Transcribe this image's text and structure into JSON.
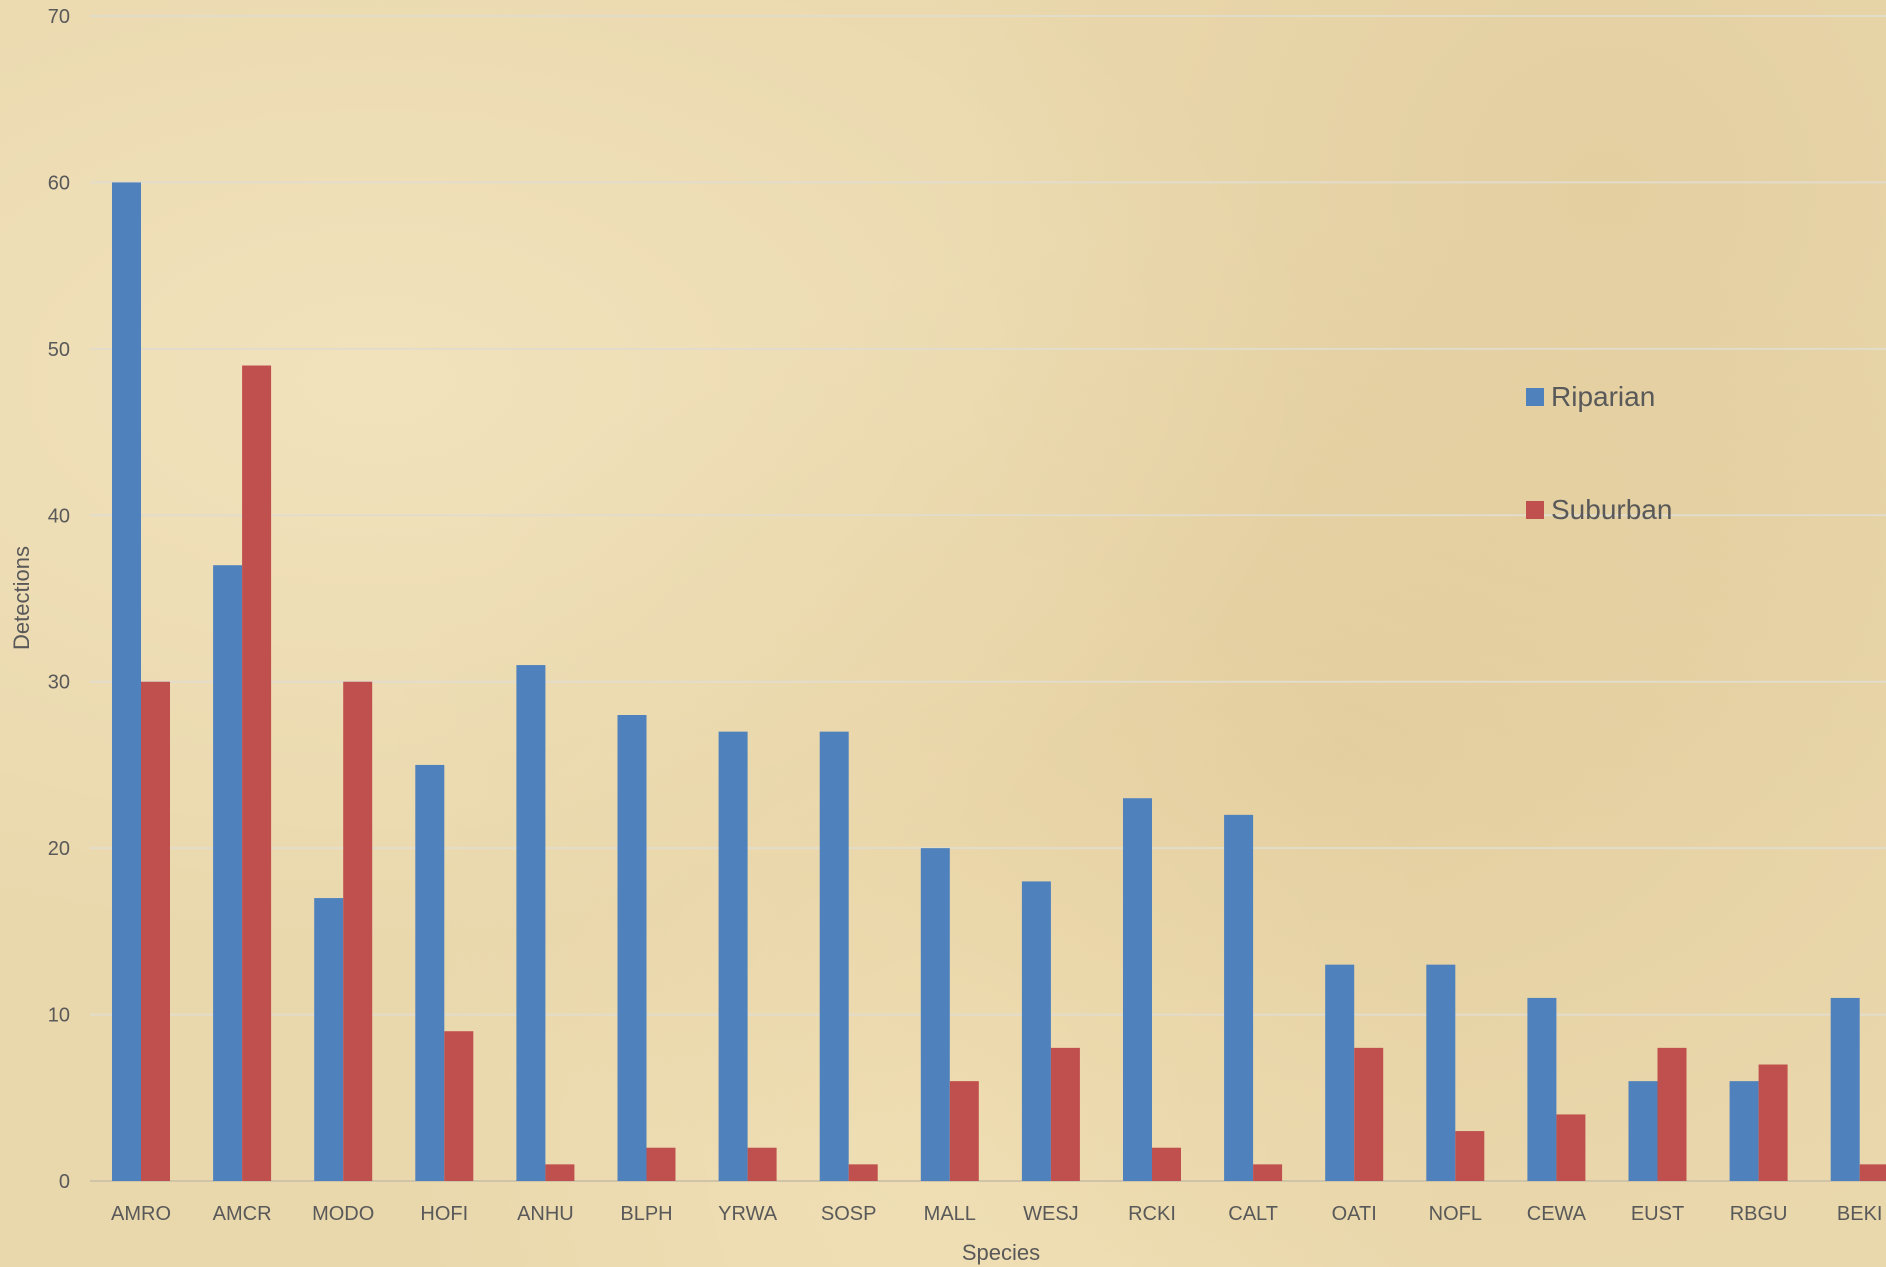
{
  "chart_data": {
    "type": "bar",
    "xlabel": "Species",
    "ylabel": "Detections",
    "ylim": [
      0,
      70
    ],
    "yticks": [
      0,
      10,
      20,
      30,
      40,
      50,
      60,
      70
    ],
    "grid": true,
    "legend_position": "right",
    "categories": [
      "AMRO",
      "AMCR",
      "MODO",
      "HOFI",
      "ANHU",
      "BLPH",
      "YRWA",
      "SOSP",
      "MALL",
      "WESJ",
      "RCKI",
      "CALT",
      "OATI",
      "NOFL",
      "CEWA",
      "EUST",
      "RBGU",
      "BEKI"
    ],
    "series": [
      {
        "name": "Riparian",
        "color": "#4f81bd",
        "values": [
          60,
          37,
          17,
          25,
          31,
          28,
          27,
          27,
          20,
          18,
          23,
          22,
          13,
          13,
          11,
          6,
          6,
          11
        ]
      },
      {
        "name": "Suburban",
        "color": "#c0504d",
        "values": [
          30,
          49,
          30,
          9,
          1,
          2,
          2,
          1,
          6,
          8,
          2,
          1,
          8,
          3,
          4,
          8,
          7,
          1
        ]
      }
    ]
  }
}
